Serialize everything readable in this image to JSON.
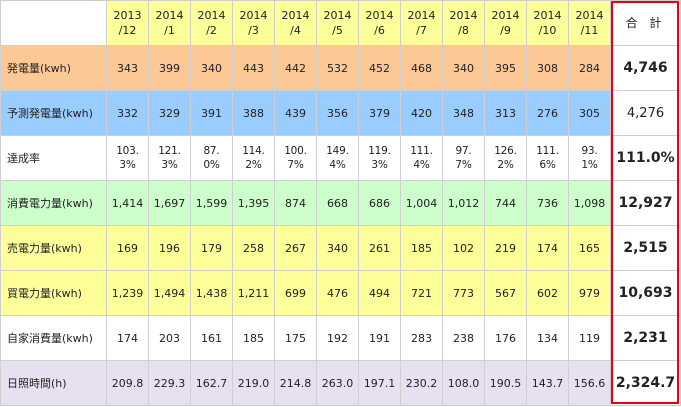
{
  "header": {
    "months": [
      [
        "2013",
        "/12"
      ],
      [
        "2014",
        "/1"
      ],
      [
        "2014",
        "/2"
      ],
      [
        "2014",
        "/3"
      ],
      [
        "2014",
        "/4"
      ],
      [
        "2014",
        "/5"
      ],
      [
        "2014",
        "/6"
      ],
      [
        "2014",
        "/7"
      ],
      [
        "2014",
        "/8"
      ],
      [
        "2014",
        "/9"
      ],
      [
        "2014",
        "/10"
      ],
      [
        "2014",
        "/11"
      ]
    ],
    "total_label": "合 計"
  },
  "rows": [
    {
      "label": "発電量(kwh)",
      "values": [
        "343",
        "399",
        "340",
        "443",
        "442",
        "532",
        "452",
        "468",
        "340",
        "395",
        "308",
        "284"
      ],
      "total": "4,746"
    },
    {
      "label": "予測発電量(kwh)",
      "values": [
        "332",
        "329",
        "391",
        "388",
        "439",
        "356",
        "379",
        "420",
        "348",
        "313",
        "276",
        "305"
      ],
      "total": "4,276"
    },
    {
      "label": "達成率",
      "values": [
        [
          "103.",
          "3%"
        ],
        [
          "121.",
          "3%"
        ],
        [
          "87.",
          "0%"
        ],
        [
          "114.",
          "2%"
        ],
        [
          "100.",
          "7%"
        ],
        [
          "149.",
          "4%"
        ],
        [
          "119.",
          "3%"
        ],
        [
          "111.",
          "4%"
        ],
        [
          "97.",
          "7%"
        ],
        [
          "126.",
          "2%"
        ],
        [
          "111.",
          "6%"
        ],
        [
          "93.",
          "1%"
        ]
      ],
      "total": "111.0%"
    },
    {
      "label": "消費電力量(kwh)",
      "values": [
        "1,414",
        "1,697",
        "1,599",
        "1,395",
        "874",
        "668",
        "686",
        "1,004",
        "1,012",
        "744",
        "736",
        "1,098"
      ],
      "total": "12,927"
    },
    {
      "label": "売電力量(kwh)",
      "values": [
        "169",
        "196",
        "179",
        "258",
        "267",
        "340",
        "261",
        "185",
        "102",
        "219",
        "174",
        "165"
      ],
      "total": "2,515"
    },
    {
      "label": "買電力量(kwh)",
      "values": [
        "1,239",
        "1,494",
        "1,438",
        "1,211",
        "699",
        "476",
        "494",
        "721",
        "773",
        "567",
        "602",
        "979"
      ],
      "total": "10,693"
    },
    {
      "label": "自家消費量(kwh)",
      "values": [
        "174",
        "203",
        "161",
        "185",
        "175",
        "192",
        "191",
        "283",
        "238",
        "176",
        "134",
        "119"
      ],
      "total": "2,231"
    },
    {
      "label": "日照時間(h)",
      "values": [
        "209.8",
        "229.3",
        "162.7",
        "219.0",
        "214.8",
        "263.0",
        "197.1",
        "230.2",
        "108.0",
        "190.5",
        "143.7",
        "156.6"
      ],
      "total": "2,324.7"
    }
  ],
  "colors": {
    "header": "#ffff99",
    "row_orange": "#fcc896",
    "row_blue": "#99ccff",
    "row_green": "#ccffcc",
    "row_yellow": "#ffff99",
    "row_purple": "#e6e0f0",
    "total_border": "#e60012"
  }
}
